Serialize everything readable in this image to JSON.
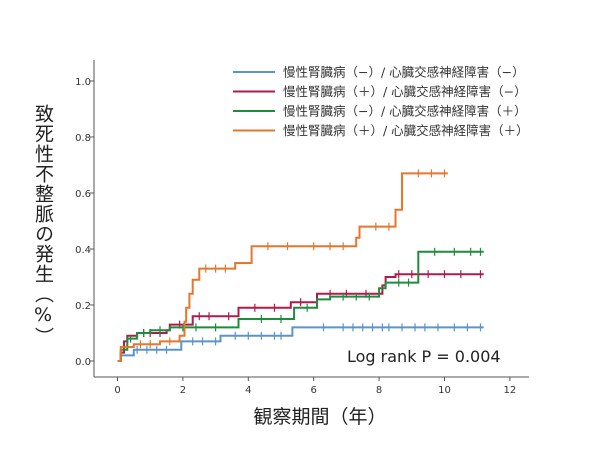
{
  "chart_data": {
    "type": "line",
    "xlabel": "観察期間（年）",
    "ylabel": "致死性不整脈の発生（%）",
    "xlim": [
      0,
      12
    ],
    "ylim": [
      0,
      1.0
    ],
    "xticks": [
      "0",
      "2",
      "4",
      "6",
      "8",
      "10",
      "12"
    ],
    "yticks": [
      "0.0",
      "0.2",
      "0.4",
      "0.6",
      "0.8",
      "1.0"
    ],
    "grid": false,
    "legend_position": "top-right",
    "annotation": "Log rank P = 0.004",
    "series": [
      {
        "name": "慢性腎臓病（−）/ 心臓交感神経障害（−）",
        "color": "#5b95c8",
        "points": [
          [
            0,
            0
          ],
          [
            0.1,
            0.02
          ],
          [
            0.5,
            0.04
          ],
          [
            1.9,
            0.04
          ],
          [
            1.95,
            0.07
          ],
          [
            3.1,
            0.07
          ],
          [
            3.15,
            0.09
          ],
          [
            5.3,
            0.09
          ],
          [
            5.35,
            0.12
          ],
          [
            11.2,
            0.12
          ]
        ],
        "censor": [
          0.6,
          0.9,
          1.2,
          1.5,
          2.3,
          2.6,
          3.0,
          3.6,
          4.0,
          4.4,
          4.8,
          5.0,
          6.3,
          6.9,
          7.2,
          7.5,
          7.8,
          8.1,
          8.3,
          8.7,
          9.1,
          9.4,
          9.8,
          10.3,
          10.7,
          11.1
        ]
      },
      {
        "name": "慢性腎臓病（＋）/ 心臓交感神経障害（−）",
        "color": "#b01a4d",
        "points": [
          [
            0,
            0
          ],
          [
            0.1,
            0.03
          ],
          [
            0.2,
            0.07
          ],
          [
            0.3,
            0.09
          ],
          [
            0.6,
            0.1
          ],
          [
            1.5,
            0.11
          ],
          [
            1.6,
            0.13
          ],
          [
            2.3,
            0.16
          ],
          [
            2.9,
            0.16
          ],
          [
            3.7,
            0.19
          ],
          [
            5.3,
            0.21
          ],
          [
            6.1,
            0.24
          ],
          [
            8.1,
            0.27
          ],
          [
            8.2,
            0.3
          ],
          [
            8.5,
            0.31
          ],
          [
            11.2,
            0.31
          ]
        ],
        "censor": [
          0.8,
          1.0,
          1.3,
          1.9,
          2.5,
          2.8,
          3.4,
          4.2,
          4.8,
          5.6,
          6.5,
          7.0,
          7.6,
          8.6,
          9.0,
          9.5,
          10.0,
          10.5,
          11.1
        ]
      },
      {
        "name": "慢性腎臓病（−）/ 心臓交感神経障害（＋）",
        "color": "#1f8c3d",
        "points": [
          [
            0,
            0
          ],
          [
            0.1,
            0.04
          ],
          [
            0.3,
            0.08
          ],
          [
            0.6,
            0.1
          ],
          [
            1.0,
            0.11
          ],
          [
            1.6,
            0.12
          ],
          [
            3.7,
            0.15
          ],
          [
            5.4,
            0.19
          ],
          [
            6.1,
            0.22
          ],
          [
            6.5,
            0.23
          ],
          [
            8.0,
            0.26
          ],
          [
            8.2,
            0.28
          ],
          [
            9.2,
            0.39
          ],
          [
            11.2,
            0.39
          ]
        ],
        "censor": [
          0.4,
          0.8,
          1.3,
          2.0,
          2.4,
          3.0,
          4.4,
          5.0,
          5.8,
          6.9,
          7.3,
          7.7,
          8.6,
          8.9,
          9.7,
          10.3,
          10.8,
          11.1
        ]
      },
      {
        "name": "慢性腎臓病（＋）/ 心臓交感神経障害（＋）",
        "color": "#e6762e",
        "points": [
          [
            0,
            0
          ],
          [
            0.1,
            0.05
          ],
          [
            0.5,
            0.06
          ],
          [
            1.3,
            0.07
          ],
          [
            1.9,
            0.09
          ],
          [
            2.05,
            0.14
          ],
          [
            2.1,
            0.19
          ],
          [
            2.2,
            0.24
          ],
          [
            2.3,
            0.29
          ],
          [
            2.5,
            0.33
          ],
          [
            3.6,
            0.35
          ],
          [
            4.1,
            0.41
          ],
          [
            7.3,
            0.44
          ],
          [
            7.4,
            0.48
          ],
          [
            8.5,
            0.54
          ],
          [
            8.7,
            0.67
          ],
          [
            10.1,
            0.67
          ]
        ],
        "censor": [
          0.7,
          1.0,
          1.6,
          2.7,
          3.0,
          3.3,
          4.6,
          5.2,
          6.0,
          6.5,
          6.9,
          7.9,
          8.3,
          9.2,
          9.6,
          10.0
        ]
      }
    ]
  }
}
